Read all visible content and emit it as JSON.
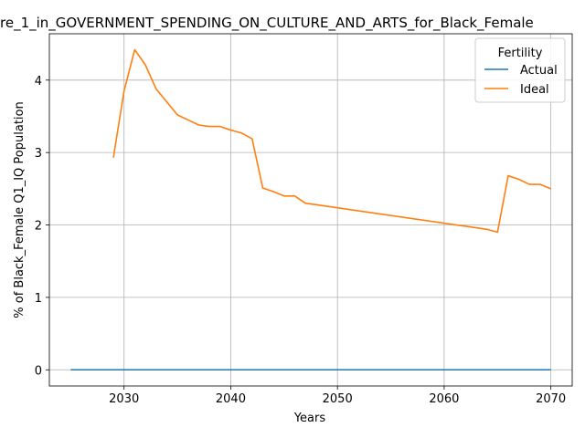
{
  "chart_data": {
    "type": "line",
    "title": "re_1_in_GOVERNMENT_SPENDING_ON_CULTURE_AND_ARTS_for_Black_Female",
    "xlabel": "Years",
    "ylabel": "% of Black_Female Q1_IQ Population",
    "xlim": [
      2023,
      2072
    ],
    "ylim": [
      -0.2235,
      4.64
    ],
    "xticks": [
      2030,
      2040,
      2050,
      2060,
      2070
    ],
    "yticks": [
      0,
      1,
      2,
      3,
      4
    ],
    "grid": true,
    "legend": {
      "title": "Fertility",
      "placement": "top-right"
    },
    "series": [
      {
        "name": "Actual",
        "color": "#1f77b4",
        "x": [
          2025,
          2070
        ],
        "y": [
          0,
          0
        ]
      },
      {
        "name": "Ideal",
        "color": "#ff7f0e",
        "x": [
          2029,
          2030,
          2031,
          2032,
          2033,
          2034,
          2035,
          2036,
          2037,
          2038,
          2039,
          2040,
          2041,
          2042,
          2043,
          2044,
          2045,
          2046,
          2047,
          2048,
          2064,
          2065,
          2066,
          2067,
          2068,
          2069,
          2070
        ],
        "y": [
          2.93,
          3.85,
          4.42,
          4.21,
          3.88,
          3.7,
          3.52,
          3.45,
          3.38,
          3.36,
          3.36,
          3.31,
          3.27,
          3.19,
          2.51,
          2.46,
          2.4,
          2.4,
          2.3,
          2.28,
          1.94,
          1.9,
          2.68,
          2.63,
          2.56,
          2.56,
          2.5
        ]
      }
    ]
  }
}
